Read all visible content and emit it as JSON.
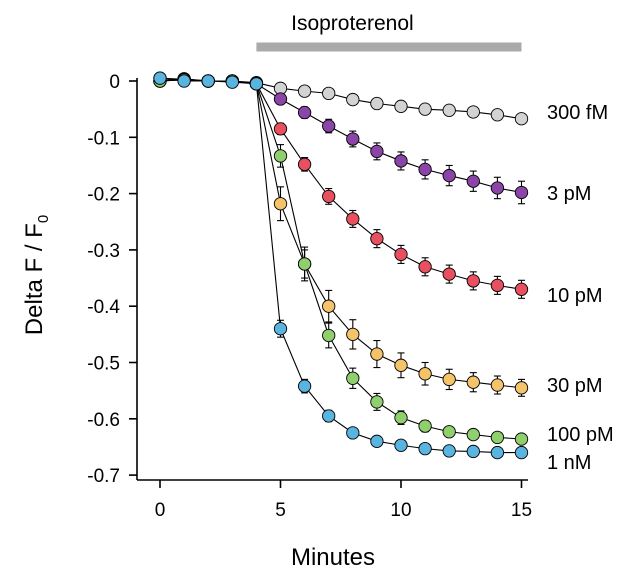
{
  "chart_data": {
    "type": "scatter",
    "xlabel": "Minutes",
    "ylabel_main": "Delta F / F",
    "ylabel_subscript": "0",
    "xlim": [
      -1,
      15.5
    ],
    "ylim": [
      -0.7,
      0.02
    ],
    "xticks": [
      0,
      5,
      10,
      15
    ],
    "yticks": [
      0,
      -0.1,
      -0.2,
      -0.3,
      -0.4,
      -0.5,
      -0.6,
      -0.7
    ],
    "ytick_labels": [
      "0",
      "-0.1",
      "-0.2",
      "-0.3",
      "-0.4",
      "-0.5",
      "-0.6",
      "-0.7"
    ],
    "treatment": {
      "label": "Isoproterenol",
      "x_start": 4,
      "x_end": 15,
      "color": "#aaaaaa"
    },
    "x": [
      0,
      1,
      2,
      3,
      4,
      5,
      6,
      7,
      8,
      9,
      10,
      11,
      12,
      13,
      14,
      15
    ],
    "series": [
      {
        "name": "300 fM",
        "color": "#d3d3d3",
        "values": [
          0.005,
          0.003,
          0.0,
          0.0,
          -0.003,
          -0.013,
          -0.018,
          -0.022,
          -0.033,
          -0.04,
          -0.045,
          -0.05,
          -0.052,
          -0.055,
          -0.06,
          -0.067
        ],
        "errors": [
          0.003,
          0.003,
          0.003,
          0.003,
          0.003,
          0.004,
          0.004,
          0.004,
          0.004,
          0.004,
          0.004,
          0.004,
          0.004,
          0.004,
          0.004,
          0.005
        ]
      },
      {
        "name": "3 pM",
        "color": "#8b44a8",
        "values": [
          0.0,
          0.004,
          0.0,
          0.0,
          -0.005,
          -0.032,
          -0.056,
          -0.08,
          -0.103,
          -0.125,
          -0.142,
          -0.157,
          -0.168,
          -0.178,
          -0.19,
          -0.198
        ],
        "errors": [
          0.003,
          0.003,
          0.003,
          0.003,
          0.003,
          0.008,
          0.01,
          0.012,
          0.014,
          0.015,
          0.016,
          0.017,
          0.018,
          0.018,
          0.019,
          0.02
        ]
      },
      {
        "name": "10 pM",
        "color": "#e8505f",
        "values": [
          0.0,
          0.002,
          0.0,
          0.0,
          -0.005,
          -0.085,
          -0.148,
          -0.205,
          -0.245,
          -0.28,
          -0.308,
          -0.33,
          -0.343,
          -0.355,
          -0.363,
          -0.37
        ],
        "errors": [
          0.003,
          0.003,
          0.003,
          0.003,
          0.003,
          0.01,
          0.012,
          0.014,
          0.015,
          0.016,
          0.016,
          0.016,
          0.016,
          0.016,
          0.016,
          0.016
        ]
      },
      {
        "name": "30 pM",
        "color": "#f5c46a",
        "values": [
          0.0,
          0.003,
          0.0,
          0.0,
          -0.005,
          -0.218,
          -0.325,
          -0.4,
          -0.45,
          -0.485,
          -0.505,
          -0.52,
          -0.53,
          -0.535,
          -0.54,
          -0.545
        ],
        "errors": [
          0.003,
          0.003,
          0.003,
          0.003,
          0.003,
          0.03,
          0.03,
          0.028,
          0.026,
          0.024,
          0.022,
          0.02,
          0.018,
          0.017,
          0.016,
          0.015
        ]
      },
      {
        "name": "100 pM",
        "color": "#90cf6e",
        "values": [
          0.0,
          0.002,
          0.0,
          0.0,
          -0.005,
          -0.133,
          -0.325,
          -0.452,
          -0.528,
          -0.57,
          -0.598,
          -0.613,
          -0.623,
          -0.628,
          -0.633,
          -0.636
        ],
        "errors": [
          0.003,
          0.003,
          0.003,
          0.003,
          0.003,
          0.02,
          0.025,
          0.022,
          0.018,
          0.015,
          0.012,
          0.01,
          0.009,
          0.008,
          0.008,
          0.007
        ]
      },
      {
        "name": "1 nM",
        "color": "#5ab4e0",
        "values": [
          0.005,
          0.0,
          0.0,
          -0.002,
          -0.005,
          -0.44,
          -0.542,
          -0.595,
          -0.625,
          -0.64,
          -0.647,
          -0.653,
          -0.657,
          -0.658,
          -0.66,
          -0.66
        ],
        "errors": [
          0.003,
          0.003,
          0.003,
          0.003,
          0.003,
          0.015,
          0.012,
          0.01,
          0.008,
          0.007,
          0.006,
          0.006,
          0.005,
          0.005,
          0.005,
          0.005
        ]
      }
    ]
  }
}
